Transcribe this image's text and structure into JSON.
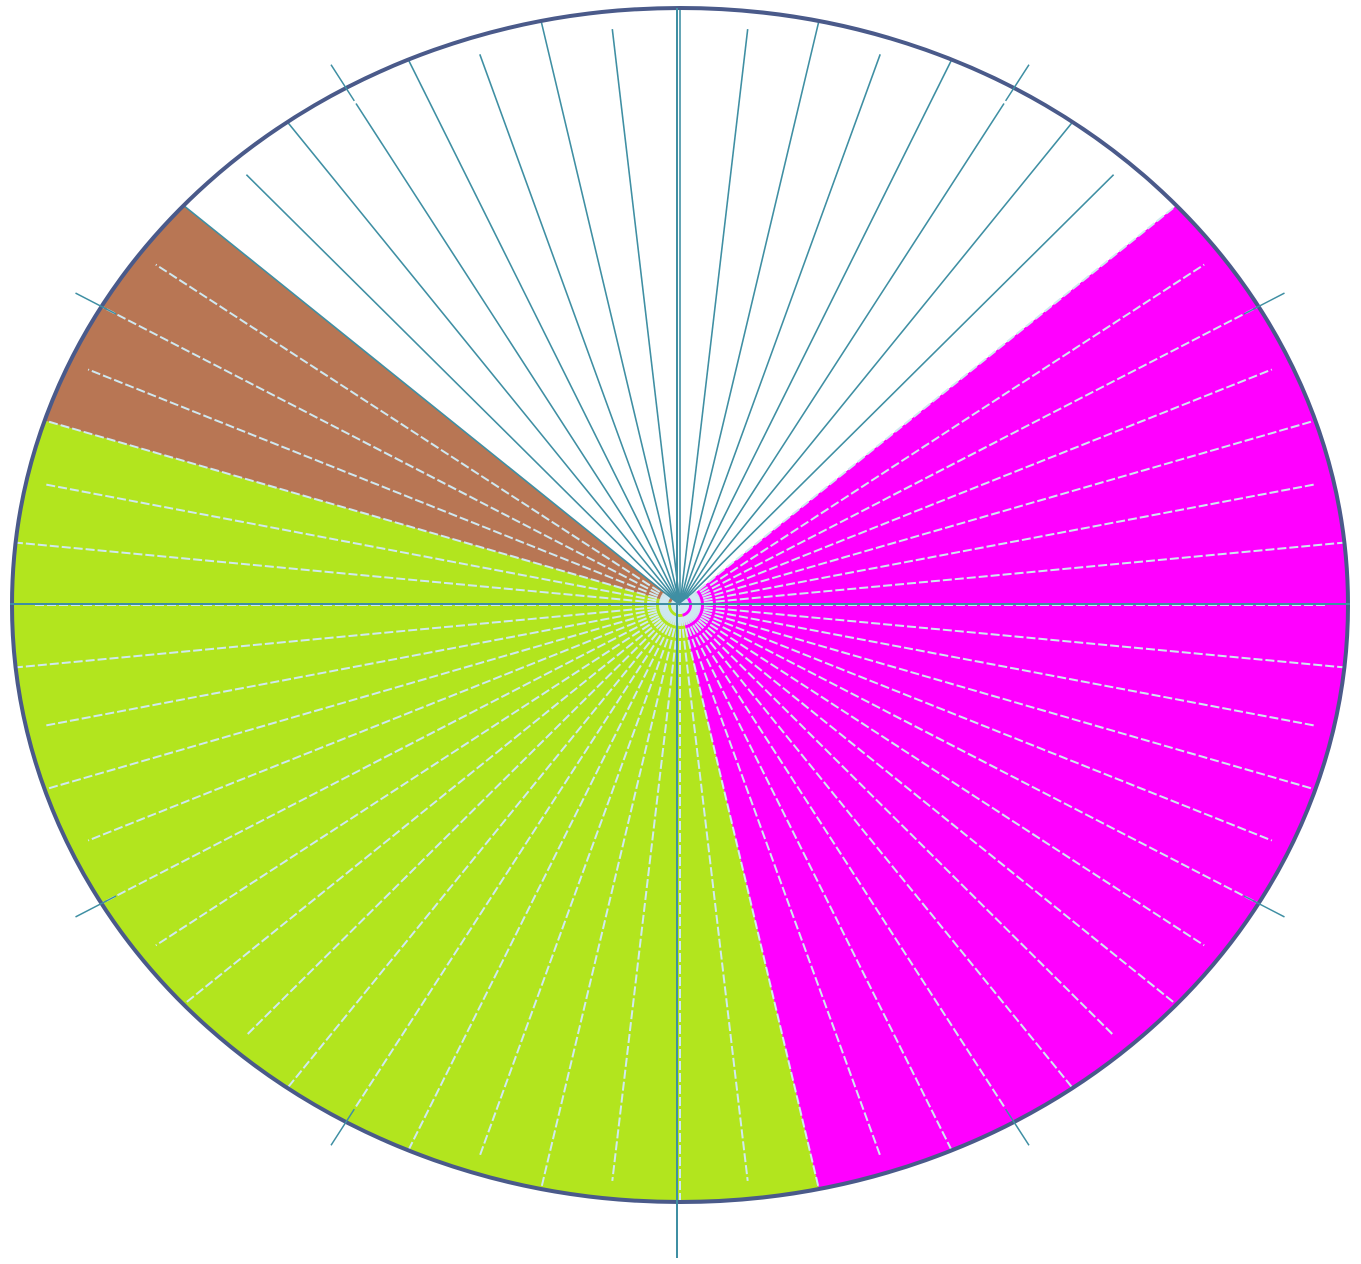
{
  "diagram": {
    "divisions": 60,
    "start_division": 0,
    "colors": {
      "background": "#ffffff",
      "outline": "#4a5a8a",
      "spoke": "#3f8fa3",
      "dashed_spoke": "#cfe8f0"
    },
    "sectors": [
      {
        "name": "magenta-sector",
        "color": "#ff00ff",
        "from_division": 8,
        "to_division": 28
      },
      {
        "name": "lime-sector",
        "color": "#b2e51e",
        "from_division": 28,
        "to_division": 48
      },
      {
        "name": "brown-sector",
        "color": "#b87654",
        "from_division": 48,
        "to_division": 52
      },
      {
        "name": "white-sector",
        "color": "#ffffff",
        "from_division": 52,
        "to_division": 68
      }
    ]
  }
}
